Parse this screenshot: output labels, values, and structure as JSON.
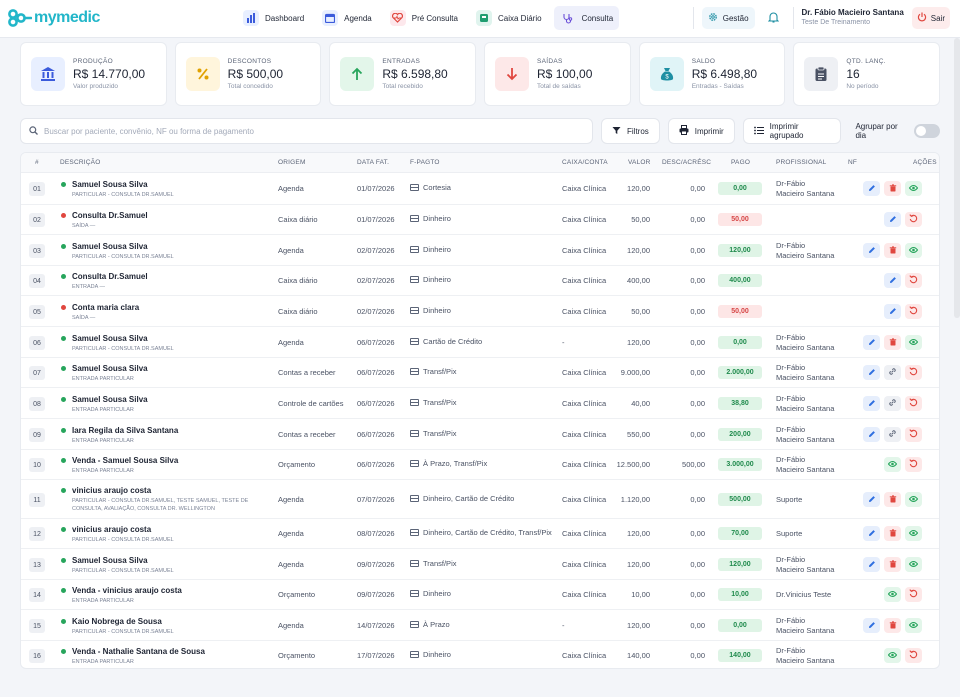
{
  "brand": {
    "name": "mymedic",
    "color": "#22b6c9"
  },
  "nav": [
    {
      "label": "Dashboard",
      "icon": "bar-chart-icon"
    },
    {
      "label": "Agenda",
      "icon": "calendar-icon"
    },
    {
      "label": "Pré Consulta",
      "icon": "heart-pulse-icon"
    },
    {
      "label": "Caixa Diário",
      "icon": "cash-register-icon"
    },
    {
      "label": "Consulta",
      "icon": "stethoscope-icon",
      "active": true
    }
  ],
  "top": {
    "gestao": "Gestão",
    "user_name": "Dr. Fábio Macieiro Santana",
    "user_sub": "Teste De Treinamento",
    "sair": "Sair"
  },
  "cards": [
    {
      "label": "PRODUÇÃO",
      "value": "R$ 14.770,00",
      "sub": "Valor produzido",
      "icon": "bank-icon",
      "color": "#3b5bdb",
      "bg": "#e8efff"
    },
    {
      "label": "DESCONTOS",
      "value": "R$ 500,00",
      "sub": "Total concedido",
      "icon": "percent-icon",
      "color": "#e0a100",
      "bg": "#fff5dc"
    },
    {
      "label": "ENTRADAS",
      "value": "R$ 6.598,80",
      "sub": "Total recebido",
      "icon": "arrow-up-icon",
      "color": "#27a55c",
      "bg": "#e3f6ea"
    },
    {
      "label": "SAÍDAS",
      "value": "R$ 100,00",
      "sub": "Total de saídas",
      "icon": "arrow-down-icon",
      "color": "#e0473f",
      "bg": "#fde8e8"
    },
    {
      "label": "SALDO",
      "value": "R$ 6.498,80",
      "sub": "Entradas - Saídas",
      "icon": "money-bag-icon",
      "color": "#1f8fa3",
      "bg": "#e0f4f7"
    },
    {
      "label": "QTD. LANÇ.",
      "value": "16",
      "sub": "No período",
      "icon": "clipboard-icon",
      "color": "#4a5264",
      "bg": "#eef0f4"
    }
  ],
  "toolbar": {
    "search_placeholder": "Buscar por paciente, convênio, NF ou forma de pagamento",
    "filtros": "Filtros",
    "imprimir": "Imprimir",
    "imprimir_agrupado": "Imprimir agrupado",
    "agrupar": "Agrupar por dia"
  },
  "headers": {
    "num": "#",
    "desc": "DESCRIÇÃO",
    "origem": "ORIGEM",
    "data": "DATA FAT.",
    "fpago": "F-PAGTO",
    "caixa": "CAIXA/CONTA",
    "valor": "VALOR",
    "desc_acres": "DESC/ACRÉSC",
    "pago": "PAGO",
    "prof": "PROFISSIONAL",
    "nf": "NF",
    "acoes": "AÇÕES"
  },
  "rows": [
    {
      "n": "01",
      "status": "in",
      "title": "Samuel Sousa Silva",
      "sub": "PARTICULAR - CONSULTA DR.SAMUEL",
      "origem": "Agenda",
      "data": "01/07/2026",
      "fpago": "Cortesia",
      "caixa": "Caixa Clínica",
      "valor": "120,00",
      "dc": "0,00",
      "pago": "0,00",
      "prof1": "Dr-Fábio",
      "prof2": "Macieiro Santana",
      "actions": [
        "edit",
        "del",
        "view"
      ]
    },
    {
      "n": "02",
      "status": "out",
      "title": "Consulta Dr.Samuel",
      "sub": "SAÍDA  —",
      "origem": "Caixa diário",
      "data": "01/07/2026",
      "fpago": "Dinheiro",
      "caixa": "Caixa Clínica",
      "valor": "50,00",
      "dc": "0,00",
      "pago": "50,00",
      "prof1": "",
      "prof2": "",
      "actions": [
        "edit",
        "undo"
      ]
    },
    {
      "n": "03",
      "status": "in",
      "title": "Samuel Sousa Silva",
      "sub": "PARTICULAR - CONSULTA DR.SAMUEL",
      "origem": "Agenda",
      "data": "02/07/2026",
      "fpago": "Dinheiro",
      "caixa": "Caixa Clínica",
      "valor": "120,00",
      "dc": "0,00",
      "pago": "120,00",
      "prof1": "Dr-Fábio",
      "prof2": "Macieiro Santana",
      "actions": [
        "edit",
        "del",
        "view"
      ]
    },
    {
      "n": "04",
      "status": "in",
      "title": "Consulta Dr.Samuel",
      "sub": "ENTRADA  —",
      "origem": "Caixa diário",
      "data": "02/07/2026",
      "fpago": "Dinheiro",
      "caixa": "Caixa Clínica",
      "valor": "400,00",
      "dc": "0,00",
      "pago": "400,00",
      "prof1": "",
      "prof2": "",
      "actions": [
        "edit",
        "undo"
      ]
    },
    {
      "n": "05",
      "status": "out",
      "title": "Conta maria clara",
      "sub": "SAÍDA  —",
      "origem": "Caixa diário",
      "data": "02/07/2026",
      "fpago": "Dinheiro",
      "caixa": "Caixa Clínica",
      "valor": "50,00",
      "dc": "0,00",
      "pago": "50,00",
      "prof1": "",
      "prof2": "",
      "actions": [
        "edit",
        "undo"
      ]
    },
    {
      "n": "06",
      "status": "in",
      "title": "Samuel Sousa Silva",
      "sub": "PARTICULAR - CONSULTA DR.SAMUEL",
      "origem": "Agenda",
      "data": "06/07/2026",
      "fpago": "Cartão de Crédito",
      "caixa": "-",
      "valor": "120,00",
      "dc": "0,00",
      "pago": "0,00",
      "prof1": "Dr-Fábio",
      "prof2": "Macieiro Santana",
      "actions": [
        "edit",
        "del",
        "view"
      ]
    },
    {
      "n": "07",
      "status": "in",
      "title": "Samuel Sousa Silva",
      "sub": "ENTRADA  PARTICULAR",
      "origem": "Contas a receber",
      "data": "06/07/2026",
      "fpago": "Transf/Pix",
      "caixa": "Caixa Clínica",
      "valor": "9.000,00",
      "dc": "0,00",
      "pago": "2.000,00",
      "prof1": "Dr-Fábio",
      "prof2": "Macieiro Santana",
      "actions": [
        "edit",
        "link",
        "undo"
      ]
    },
    {
      "n": "08",
      "status": "in",
      "title": "Samuel Sousa Silva",
      "sub": "ENTRADA  PARTICULAR",
      "origem": "Controle de cartões",
      "data": "06/07/2026",
      "fpago": "Transf/Pix",
      "caixa": "Caixa Clínica",
      "valor": "40,00",
      "dc": "0,00",
      "pago": "38,80",
      "prof1": "Dr-Fábio",
      "prof2": "Macieiro Santana",
      "actions": [
        "edit",
        "link",
        "undo"
      ]
    },
    {
      "n": "09",
      "status": "in",
      "title": "Iara Regila da Silva Santana",
      "sub": "ENTRADA  PARTICULAR",
      "origem": "Contas a receber",
      "data": "06/07/2026",
      "fpago": "Transf/Pix",
      "caixa": "Caixa Clínica",
      "valor": "550,00",
      "dc": "0,00",
      "pago": "200,00",
      "prof1": "Dr-Fábio",
      "prof2": "Macieiro Santana",
      "actions": [
        "edit",
        "link",
        "undo"
      ]
    },
    {
      "n": "10",
      "status": "in",
      "title": "Venda - Samuel Sousa Silva",
      "sub": "ENTRADA  PARTICULAR",
      "origem": "Orçamento",
      "data": "06/07/2026",
      "fpago": "À Prazo, Transf/Pix",
      "caixa": "Caixa Clínica",
      "valor": "12.500,00",
      "dc": "500,00",
      "pago": "3.000,00",
      "prof1": "Dr-Fábio",
      "prof2": "Macieiro Santana",
      "actions": [
        "view",
        "undo"
      ]
    },
    {
      "n": "11",
      "status": "in",
      "title": "vinicius araujo costa",
      "sub": "PARTICULAR - CONSULTA DR.SAMUEL, TESTE SAMUEL, TESTE DE",
      "sub2": "CONSULTA, AVALIAÇÃO, CONSULTA DR. WELLINGTON",
      "origem": "Agenda",
      "data": "07/07/2026",
      "fpago": "Dinheiro, Cartão de Crédito",
      "caixa": "Caixa Clínica",
      "valor": "1.120,00",
      "dc": "0,00",
      "pago": "500,00",
      "prof1": "Suporte",
      "prof2": "",
      "actions": [
        "edit",
        "del",
        "view"
      ]
    },
    {
      "n": "12",
      "status": "in",
      "title": "vinicius araujo costa",
      "sub": "PARTICULAR - CONSULTA DR.SAMUEL",
      "origem": "Agenda",
      "data": "08/07/2026",
      "fpago": "Dinheiro, Cartão de Crédito, Transf/Pix",
      "caixa": "Caixa Clínica",
      "valor": "120,00",
      "dc": "0,00",
      "pago": "70,00",
      "prof1": "Suporte",
      "prof2": "",
      "actions": [
        "edit",
        "del",
        "view"
      ]
    },
    {
      "n": "13",
      "status": "in",
      "title": "Samuel Sousa Silva",
      "sub": "PARTICULAR - CONSULTA DR.SAMUEL",
      "origem": "Agenda",
      "data": "09/07/2026",
      "fpago": "Transf/Pix",
      "caixa": "Caixa Clínica",
      "valor": "120,00",
      "dc": "0,00",
      "pago": "120,00",
      "prof1": "Dr-Fábio",
      "prof2": "Macieiro Santana",
      "actions": [
        "edit",
        "del",
        "view"
      ]
    },
    {
      "n": "14",
      "status": "in",
      "title": "Venda - vinicius araujo costa",
      "sub": "ENTRADA  PARTICULAR",
      "origem": "Orçamento",
      "data": "09/07/2026",
      "fpago": "Dinheiro",
      "caixa": "Caixa Clínica",
      "valor": "10,00",
      "dc": "0,00",
      "pago": "10,00",
      "prof1": "Dr.Vinicius Teste",
      "prof2": "",
      "actions": [
        "view",
        "undo"
      ]
    },
    {
      "n": "15",
      "status": "in",
      "title": "Kaio Nobrega de Sousa",
      "sub": "PARTICULAR - CONSULTA DR.SAMUEL",
      "origem": "Agenda",
      "data": "14/07/2026",
      "fpago": "À Prazo",
      "caixa": "-",
      "valor": "120,00",
      "dc": "0,00",
      "pago": "0,00",
      "prof1": "Dr-Fábio",
      "prof2": "Macieiro Santana",
      "actions": [
        "edit",
        "del",
        "view"
      ]
    },
    {
      "n": "16",
      "status": "in",
      "title": "Venda - Nathalie Santana de Sousa",
      "sub": "ENTRADA  PARTICULAR",
      "origem": "Orçamento",
      "data": "17/07/2026",
      "fpago": "Dinheiro",
      "caixa": "Caixa Clínica",
      "valor": "140,00",
      "dc": "0,00",
      "pago": "140,00",
      "prof1": "Dr-Fábio",
      "prof2": "Macieiro Santana",
      "actions": [
        "view",
        "undo"
      ]
    }
  ]
}
